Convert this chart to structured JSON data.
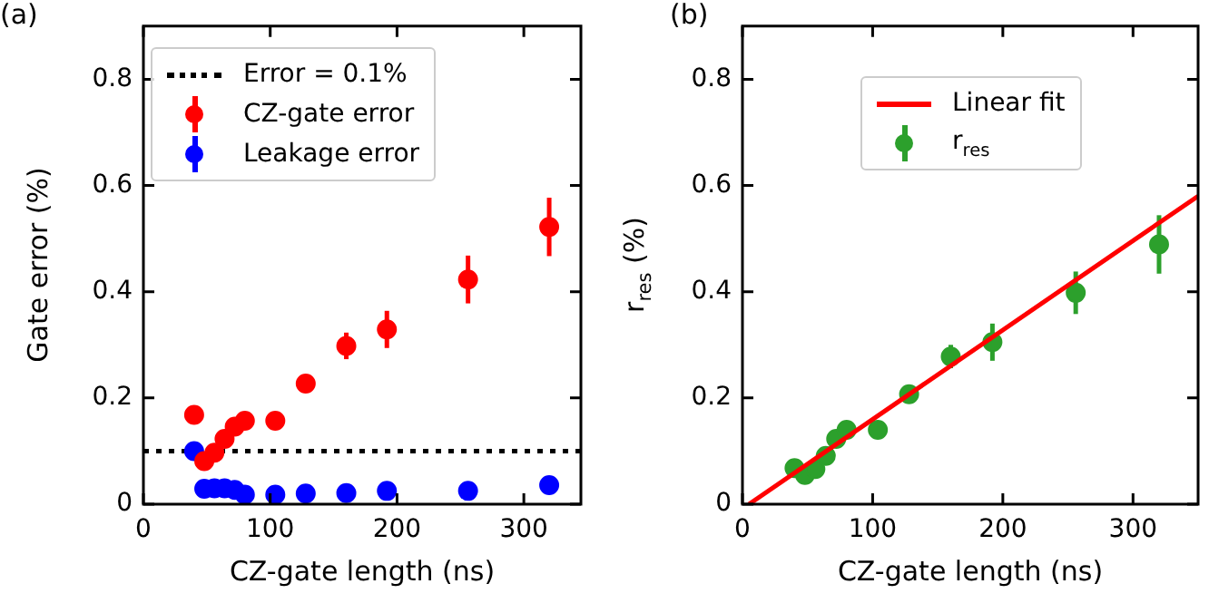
{
  "chart_data": [
    {
      "type": "scatter",
      "xlabel": "CZ-gate length (ns)",
      "ylabel": "Gate error (%)",
      "annotations": [
        "(a)"
      ],
      "x": [
        40,
        48,
        56,
        64,
        72,
        80,
        104,
        128,
        160,
        192,
        256,
        320
      ],
      "series": [
        {
          "name": "CZ-gate error",
          "color": "#ff0000",
          "values": [
            0.168,
            0.081,
            0.097,
            0.123,
            0.146,
            0.157,
            0.157,
            0.227,
            0.298,
            0.329,
            0.423,
            0.522
          ],
          "errors": [
            0.01,
            0.01,
            0.01,
            0.01,
            0.01,
            0.01,
            0.01,
            0.012,
            0.025,
            0.035,
            0.045,
            0.055
          ]
        },
        {
          "name": "Leakage error",
          "color": "#0000ff",
          "values": [
            0.1,
            0.029,
            0.03,
            0.03,
            0.027,
            0.018,
            0.018,
            0.02,
            0.021,
            0.025,
            0.025,
            0.036
          ],
          "errors": [
            0.005,
            0.005,
            0.005,
            0.005,
            0.005,
            0.005,
            0.005,
            0.005,
            0.005,
            0.005,
            0.005,
            0.005
          ]
        }
      ],
      "ref_lines": [
        {
          "axis": "y",
          "value": 0.1,
          "label": "Error = 0.1%",
          "color": "#000000",
          "line_style": "dotted"
        }
      ],
      "xlim": [
        0,
        345
      ],
      "xticks": [
        0,
        100,
        200,
        300
      ],
      "ylim": [
        0,
        0.9
      ],
      "yticks": [
        0,
        0.2,
        0.4,
        0.6,
        0.8
      ],
      "grid": false,
      "legend": "top left",
      "marker": "circle"
    },
    {
      "type": "scatter",
      "xlabel": "CZ-gate length (ns)",
      "ylabel": "r$_{res}$ (%)",
      "annotations": [
        "(b)"
      ],
      "x": [
        40,
        48,
        56,
        64,
        72,
        80,
        104,
        128,
        160,
        192,
        256,
        320
      ],
      "series": [
        {
          "name": "Linear fit",
          "type": "line",
          "color": "#ff0000",
          "x": [
            5,
            350
          ],
          "values": [
            0,
            0.58
          ],
          "marker": "none"
        },
        {
          "name": "r$_{res}$",
          "color": "#2ca02c",
          "marker": "circle",
          "values": [
            0.068,
            0.055,
            0.066,
            0.091,
            0.123,
            0.14,
            0.14,
            0.207,
            0.278,
            0.305,
            0.398,
            0.489
          ],
          "errors": [
            0.01,
            0.01,
            0.01,
            0.01,
            0.01,
            0.01,
            0.01,
            0.012,
            0.022,
            0.035,
            0.04,
            0.055
          ]
        }
      ],
      "xlim": [
        0,
        350
      ],
      "xticks": [
        0,
        100,
        200,
        300
      ],
      "ylim": [
        0,
        0.9
      ],
      "yticks": [
        0,
        0.2,
        0.4,
        0.6,
        0.8
      ],
      "grid": false,
      "legend": "top"
    }
  ]
}
